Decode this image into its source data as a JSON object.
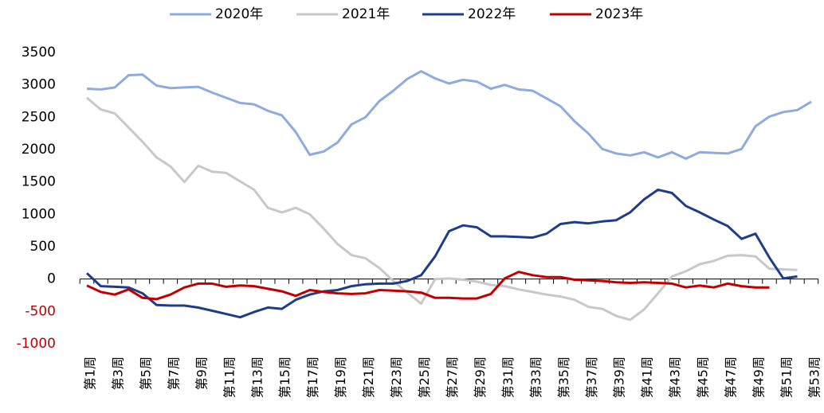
{
  "chart_data": {
    "type": "line",
    "categories": [
      "第1周",
      null,
      "第3周",
      null,
      "第5周",
      null,
      "第7周",
      null,
      "第9周",
      null,
      "第11周",
      null,
      "第13周",
      null,
      "第15周",
      null,
      "第17周",
      null,
      "第19周",
      null,
      "第21周",
      null,
      "第23周",
      null,
      "第25周",
      null,
      "第27周",
      null,
      "第29周",
      null,
      "第31周",
      null,
      "第33周",
      null,
      "第35周",
      null,
      "第37周",
      null,
      "第39周",
      null,
      "第41周",
      null,
      "第43周",
      null,
      "第45周",
      null,
      "第47周",
      null,
      "第49周",
      null,
      "第51周",
      null,
      "第53周"
    ],
    "series": [
      {
        "name": "2020年",
        "color": "#8faadc",
        "values": [
          2940,
          2930,
          2960,
          3150,
          3160,
          2990,
          2950,
          2960,
          2970,
          2880,
          2800,
          2720,
          2700,
          2600,
          2530,
          2270,
          1920,
          1970,
          2110,
          2390,
          2500,
          2750,
          2910,
          3090,
          3210,
          3100,
          3020,
          3080,
          3050,
          2940,
          3000,
          2930,
          2910,
          2790,
          2670,
          2440,
          2250,
          2010,
          1940,
          1910,
          1960,
          1880,
          1960,
          1860,
          1960,
          1950,
          1940,
          2010,
          2360,
          2510,
          2580,
          2610,
          2740
        ]
      },
      {
        "name": "2021年",
        "color": "#c8c8c8",
        "values": [
          2800,
          2620,
          2560,
          2340,
          2120,
          1880,
          1740,
          1500,
          1750,
          1660,
          1640,
          1510,
          1380,
          1100,
          1030,
          1100,
          1000,
          780,
          540,
          370,
          320,
          170,
          -30,
          -210,
          -380,
          0,
          10,
          -10,
          -40,
          -90,
          -110,
          -160,
          -200,
          -240,
          -270,
          -320,
          -430,
          -460,
          -570,
          -630,
          -470,
          -220,
          40,
          120,
          230,
          280,
          360,
          370,
          350,
          160,
          150,
          140,
          null
        ]
      },
      {
        "name": "2022年",
        "color": "#1f3c88",
        "values": [
          90,
          -110,
          -120,
          -130,
          -220,
          -400,
          -410,
          -410,
          -440,
          -490,
          -540,
          -590,
          -510,
          -440,
          -460,
          -320,
          -240,
          -190,
          -170,
          -110,
          -80,
          -70,
          -70,
          -30,
          60,
          350,
          740,
          830,
          800,
          660,
          660,
          650,
          640,
          700,
          850,
          880,
          860,
          890,
          910,
          1030,
          1230,
          1380,
          1330,
          1130,
          1030,
          920,
          820,
          620,
          700,
          330,
          10,
          40,
          null
        ]
      },
      {
        "name": "2023年",
        "color": "#c00000",
        "values": [
          -100,
          -200,
          -240,
          -160,
          -290,
          -310,
          -240,
          -130,
          -70,
          -70,
          -120,
          -100,
          -110,
          -150,
          -190,
          -260,
          -170,
          -200,
          -220,
          -230,
          -220,
          -170,
          -180,
          -190,
          -210,
          -290,
          -290,
          -300,
          -300,
          -230,
          10,
          110,
          60,
          30,
          30,
          -10,
          -20,
          -30,
          -50,
          -60,
          -50,
          -60,
          -70,
          -130,
          -100,
          -130,
          -70,
          -110,
          -130,
          -130,
          null,
          null,
          null
        ]
      }
    ],
    "ylim": [
      -1000,
      3500
    ],
    "yticks": [
      -1000,
      -500,
      0,
      500,
      1000,
      1500,
      2000,
      2500,
      3000,
      3500
    ],
    "negative_tick_color": "#c00000",
    "grid": false,
    "legend": "top"
  }
}
